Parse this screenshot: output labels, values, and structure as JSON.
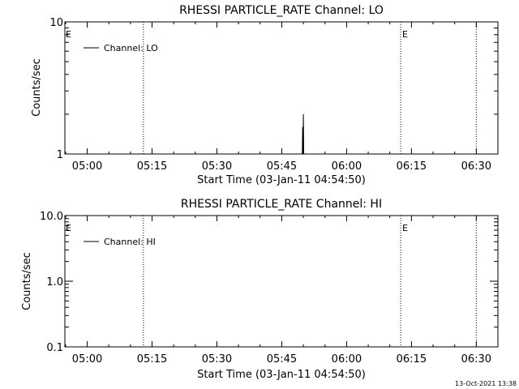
{
  "chart_data": [
    {
      "type": "line",
      "title": "RHESSI PARTICLE_RATE Channel: LO",
      "xlabel": "Start Time (03-Jan-11 04:54:50)",
      "ylabel": "Counts/sec",
      "x_tick_labels": [
        "05:00",
        "05:15",
        "05:30",
        "05:45",
        "06:00",
        "06:15",
        "06:30"
      ],
      "y_tick_labels": [
        "1",
        "10"
      ],
      "yscale": "log",
      "ylim": [
        1,
        10
      ],
      "xlim": [
        "04:54:50",
        "06:35:00"
      ],
      "legend": "top-left",
      "series": [
        {
          "name": "Channel: LO",
          "color": "#000000",
          "points": [
            {
              "x": "05:49:45",
              "y": 1.0
            },
            {
              "x": "05:49:50",
              "y": 1.6
            },
            {
              "x": "05:49:55",
              "y": 1.0
            },
            {
              "x": "05:50:00",
              "y": 2.0
            },
            {
              "x": "05:50:05",
              "y": 1.0
            }
          ]
        }
      ],
      "event_lines": [
        {
          "x": "05:13:00",
          "label": ""
        },
        {
          "x": "06:12:30",
          "label": "E"
        },
        {
          "x": "06:30:00",
          "label": ""
        }
      ],
      "edge_label": "E"
    },
    {
      "type": "line",
      "title": "RHESSI PARTICLE_RATE Channel: HI",
      "xlabel": "Start Time (03-Jan-11 04:54:50)",
      "ylabel": "Counts/sec",
      "x_tick_labels": [
        "05:00",
        "05:15",
        "05:30",
        "05:45",
        "06:00",
        "06:15",
        "06:30"
      ],
      "y_tick_labels": [
        "0.1",
        "1.0",
        "10.0"
      ],
      "yscale": "log",
      "ylim": [
        0.1,
        10
      ],
      "xlim": [
        "04:54:50",
        "06:35:00"
      ],
      "legend": "top-left",
      "series": [
        {
          "name": "Channel: HI",
          "color": "#000000",
          "points": []
        }
      ],
      "event_lines": [
        {
          "x": "05:13:00",
          "label": ""
        },
        {
          "x": "06:12:30",
          "label": "E"
        },
        {
          "x": "06:30:00",
          "label": ""
        }
      ],
      "edge_label": "E"
    }
  ],
  "timestamp": "13-Oct-2021 13:38"
}
